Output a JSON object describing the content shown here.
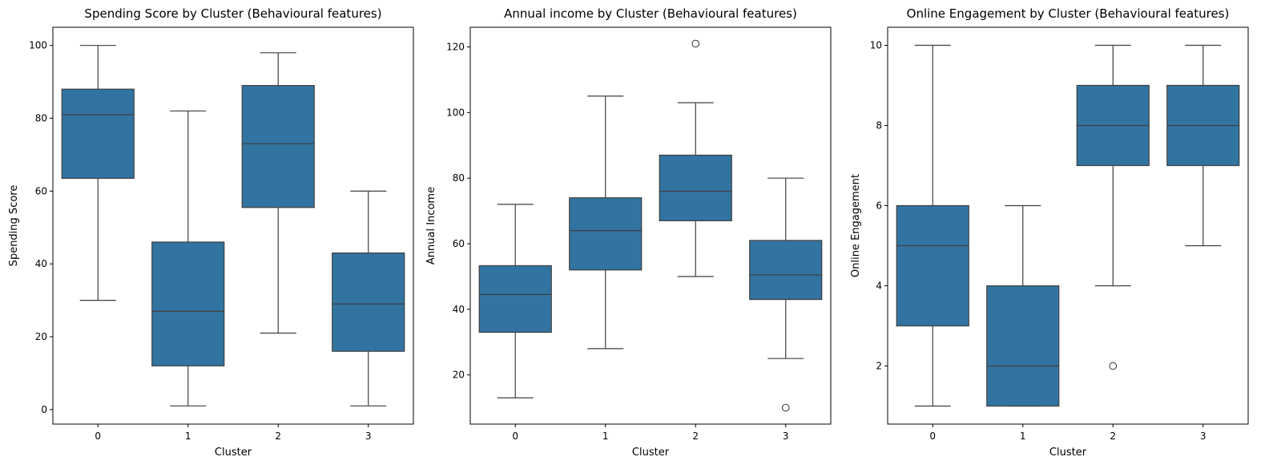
{
  "chart_data": [
    {
      "type": "box",
      "title": "Spending Score by Cluster (Behavioural features)",
      "xlabel": "Cluster",
      "ylabel": "Spending Score",
      "categories": [
        "0",
        "1",
        "2",
        "3"
      ],
      "ylim": [
        -4,
        105
      ],
      "yticks": [
        0,
        20,
        40,
        60,
        80,
        100
      ],
      "color": "#3274a1",
      "boxes": [
        {
          "category": "0",
          "whisker_low": 30,
          "q1": 63.5,
          "median": 81,
          "q3": 88,
          "whisker_high": 100,
          "outliers": []
        },
        {
          "category": "1",
          "whisker_low": 1,
          "q1": 12,
          "median": 27,
          "q3": 46,
          "whisker_high": 82,
          "outliers": []
        },
        {
          "category": "2",
          "whisker_low": 21,
          "q1": 55.5,
          "median": 73,
          "q3": 89,
          "whisker_high": 98,
          "outliers": []
        },
        {
          "category": "3",
          "whisker_low": 1,
          "q1": 16,
          "median": 29,
          "q3": 43,
          "whisker_high": 60,
          "outliers": []
        }
      ]
    },
    {
      "type": "box",
      "title": "Annual income by Cluster (Behavioural features)",
      "xlabel": "Cluster",
      "ylabel": "Annual Income",
      "categories": [
        "0",
        "1",
        "2",
        "3"
      ],
      "ylim": [
        5,
        126
      ],
      "yticks": [
        20,
        40,
        60,
        80,
        100,
        120
      ],
      "color": "#3274a1",
      "boxes": [
        {
          "category": "0",
          "whisker_low": 13,
          "q1": 33,
          "median": 44.5,
          "q3": 53.3,
          "whisker_high": 72,
          "outliers": []
        },
        {
          "category": "1",
          "whisker_low": 28,
          "q1": 52,
          "median": 64,
          "q3": 74,
          "whisker_high": 105,
          "outliers": []
        },
        {
          "category": "2",
          "whisker_low": 50,
          "q1": 67,
          "median": 76,
          "q3": 87,
          "whisker_high": 103,
          "outliers": [
            121
          ]
        },
        {
          "category": "3",
          "whisker_low": 25,
          "q1": 43,
          "median": 50.5,
          "q3": 61,
          "whisker_high": 80,
          "outliers": [
            10
          ]
        }
      ]
    },
    {
      "type": "box",
      "title": "Online Engagement by Cluster (Behavioural features)",
      "xlabel": "Cluster",
      "ylabel": "Online Engagement",
      "categories": [
        "0",
        "1",
        "2",
        "3"
      ],
      "ylim": [
        0.55,
        10.45
      ],
      "yticks": [
        2,
        4,
        6,
        8,
        10
      ],
      "color": "#3274a1",
      "boxes": [
        {
          "category": "0",
          "whisker_low": 1,
          "q1": 3,
          "median": 5,
          "q3": 6,
          "whisker_high": 10,
          "outliers": []
        },
        {
          "category": "1",
          "whisker_low": 1,
          "q1": 1,
          "median": 2,
          "q3": 4,
          "whisker_high": 6,
          "outliers": []
        },
        {
          "category": "2",
          "whisker_low": 4,
          "q1": 7,
          "median": 8,
          "q3": 9,
          "whisker_high": 10,
          "outliers": [
            2
          ]
        },
        {
          "category": "3",
          "whisker_low": 5,
          "q1": 7,
          "median": 8,
          "q3": 9,
          "whisker_high": 10,
          "outliers": []
        }
      ]
    }
  ]
}
